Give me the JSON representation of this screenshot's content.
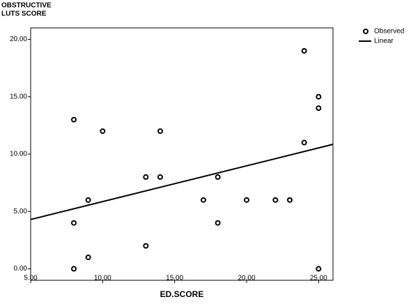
{
  "chart_data": {
    "type": "scatter",
    "y_label": [
      "OBSTRUCTIVE",
      "LUTS SCORE"
    ],
    "x_label": "ED.SCORE",
    "xlim": [
      5,
      26
    ],
    "ylim": [
      -1,
      21
    ],
    "xticks": [
      {
        "value": 5,
        "label": "5.00"
      },
      {
        "value": 10,
        "label": "10.00"
      },
      {
        "value": 15,
        "label": "15.00"
      },
      {
        "value": 20,
        "label": "20.00"
      },
      {
        "value": 25,
        "label": "25.00"
      }
    ],
    "yticks": [
      {
        "value": 0,
        "label": "0.00"
      },
      {
        "value": 5,
        "label": "5.00"
      },
      {
        "value": 10,
        "label": "10.00"
      },
      {
        "value": 15,
        "label": "15.00"
      },
      {
        "value": 20,
        "label": "20.00"
      }
    ],
    "series": [
      {
        "name": "Observed",
        "color": "#000000",
        "x": [
          8,
          8,
          8,
          9,
          9,
          10,
          13,
          13,
          14,
          14,
          17,
          18,
          18,
          20,
          22,
          23,
          24,
          24,
          25,
          25,
          25
        ],
        "values": [
          13,
          4,
          0,
          6,
          1,
          12,
          8,
          2,
          12,
          8,
          6,
          8,
          4,
          6,
          6,
          6,
          19,
          11,
          15,
          14,
          0
        ]
      },
      {
        "name": "Linear",
        "color": "#000000",
        "x": [
          5,
          26
        ],
        "values": [
          4.3,
          10.85
        ]
      }
    ]
  }
}
